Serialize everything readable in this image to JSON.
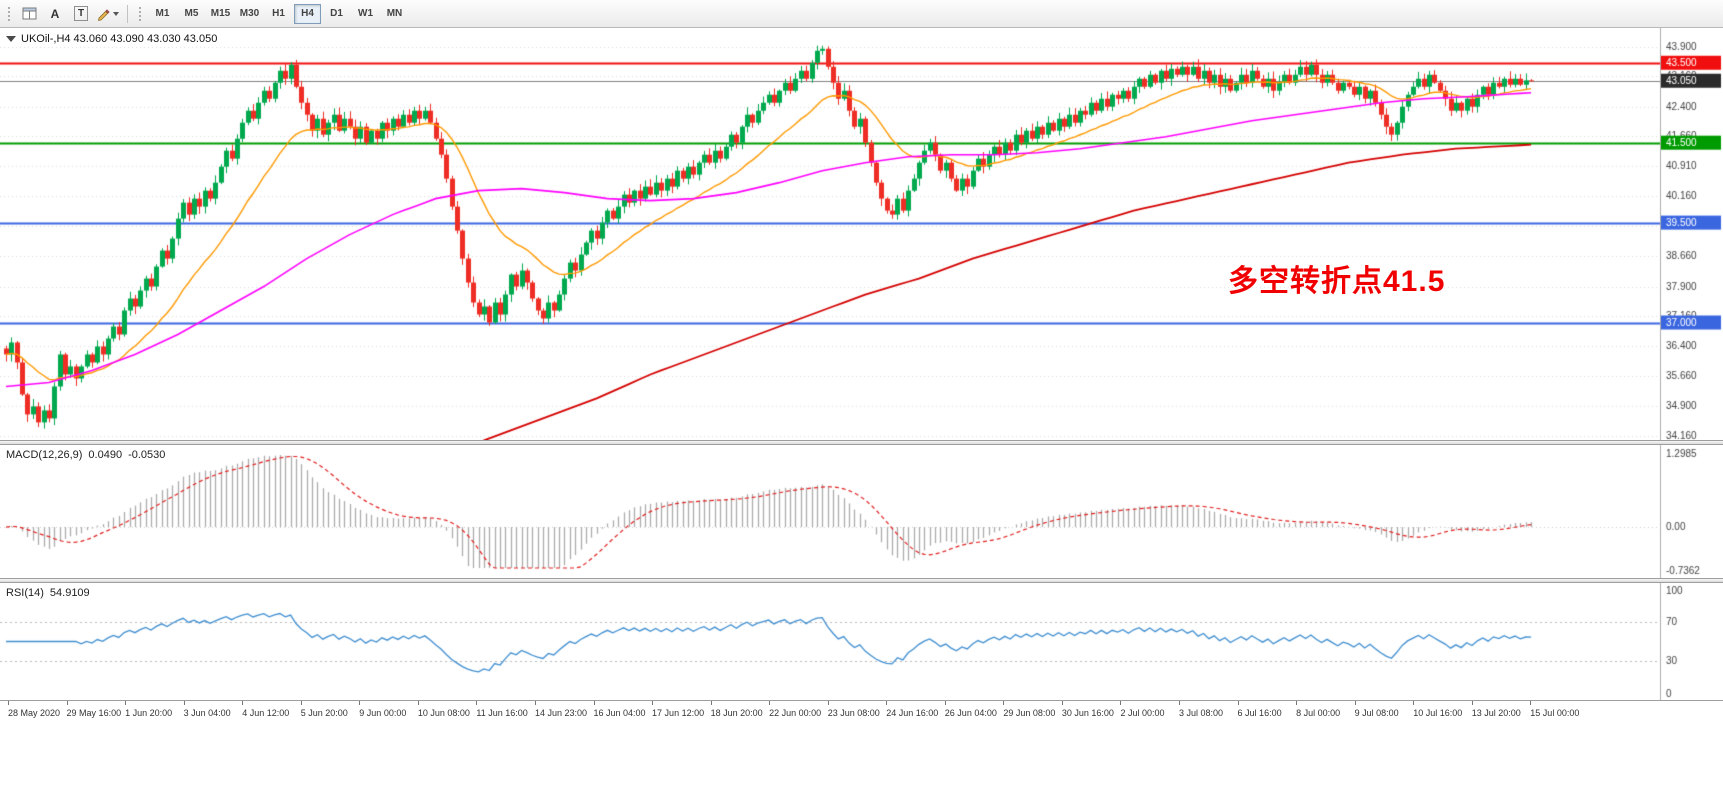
{
  "toolbar": {
    "buttons": {
      "text_tool": "A",
      "label_tool": "T"
    },
    "timeframes": [
      "M1",
      "M5",
      "M15",
      "M30",
      "H1",
      "H4",
      "D1",
      "W1",
      "MN"
    ],
    "active_timeframe": "H4"
  },
  "chart": {
    "symbol_line": "UKOil-,H4 43.060 43.090 43.030 43.050"
  },
  "chart_data": {
    "type": "candlestick",
    "symbol": "UKOil-",
    "timeframe": "H4",
    "bars": 285,
    "ohlc_current": {
      "open": 43.06,
      "high": 43.09,
      "low": 43.03,
      "close": 43.05
    },
    "price_axis": {
      "view_range": [
        34.06,
        44.37
      ],
      "ticks": [
        43.9,
        43.16,
        42.4,
        41.66,
        40.91,
        40.16,
        39.41,
        38.66,
        37.9,
        37.16,
        36.4,
        35.66,
        34.9,
        34.16
      ]
    },
    "levels": [
      {
        "price": 43.5,
        "color": "#f10e0e",
        "label": "43.500"
      },
      {
        "price": 41.5,
        "color": "#009b00",
        "label": "41.500"
      },
      {
        "price": 39.5,
        "color": "#3a66e0",
        "label": "39.500"
      },
      {
        "price": 37.0,
        "color": "#3a66e0",
        "label": "37.000"
      }
    ],
    "current_price": {
      "value": 43.05,
      "label": "43.050",
      "line_color": "#808080",
      "badge_color": "#2b2b2b"
    },
    "annotation": {
      "text": "多空转折点41.5",
      "color": "#f00000"
    },
    "colors": {
      "up": "#00a94e",
      "down": "#ee2e24",
      "ma_fast": "#ff9900",
      "ma_medium": "#ff00ff",
      "ma_slow": "#d40000",
      "macd_hist": "#ababab",
      "macd_signal": "#e02020",
      "rsi": "#3f8ed0",
      "grid": "#dadada"
    },
    "ma_fast_period": 21,
    "closes": [
      36.2,
      36.5,
      36.0,
      35.2,
      34.7,
      34.9,
      34.5,
      34.8,
      34.6,
      35.4,
      36.2,
      35.7,
      35.9,
      35.6,
      35.9,
      36.2,
      36.0,
      36.4,
      36.2,
      36.6,
      36.9,
      36.7,
      37.3,
      37.6,
      37.4,
      37.8,
      38.1,
      37.9,
      38.4,
      38.8,
      38.6,
      39.1,
      39.6,
      40.0,
      39.7,
      40.1,
      39.9,
      40.3,
      40.1,
      40.5,
      40.9,
      41.3,
      41.1,
      41.6,
      42.0,
      42.3,
      42.1,
      42.5,
      42.8,
      42.6,
      43.0,
      43.3,
      43.1,
      43.45,
      42.9,
      42.5,
      42.2,
      41.8,
      42.1,
      41.7,
      42.0,
      42.2,
      41.8,
      42.1,
      41.9,
      41.6,
      41.9,
      41.5,
      41.8,
      41.6,
      42.0,
      41.8,
      42.1,
      41.9,
      42.2,
      42.0,
      42.3,
      42.1,
      42.3,
      42.0,
      41.6,
      41.2,
      40.6,
      39.9,
      39.3,
      38.6,
      38.0,
      37.5,
      37.2,
      37.4,
      37.0,
      37.5,
      37.2,
      37.7,
      38.2,
      37.9,
      38.3,
      38.0,
      37.6,
      37.3,
      37.1,
      37.5,
      37.3,
      37.7,
      38.1,
      38.5,
      38.3,
      38.7,
      39.0,
      39.3,
      39.1,
      39.5,
      39.8,
      39.6,
      39.9,
      40.2,
      40.0,
      40.3,
      40.1,
      40.4,
      40.2,
      40.5,
      40.3,
      40.6,
      40.4,
      40.8,
      40.6,
      40.9,
      40.7,
      41.0,
      41.2,
      41.0,
      41.3,
      41.1,
      41.4,
      41.7,
      41.5,
      41.9,
      42.2,
      42.0,
      42.3,
      42.5,
      42.7,
      42.5,
      42.8,
      43.0,
      42.8,
      43.1,
      43.3,
      43.1,
      43.5,
      43.8,
      43.85,
      43.4,
      43.0,
      42.6,
      42.8,
      42.3,
      41.9,
      42.1,
      41.5,
      41.0,
      40.5,
      40.1,
      39.8,
      39.7,
      40.1,
      39.8,
      40.3,
      40.6,
      41.0,
      41.3,
      41.5,
      41.2,
      40.8,
      41.0,
      40.6,
      40.3,
      40.6,
      40.4,
      40.8,
      41.1,
      40.9,
      41.2,
      41.4,
      41.2,
      41.5,
      41.3,
      41.7,
      41.5,
      41.8,
      41.6,
      41.9,
      41.7,
      42.0,
      41.8,
      42.1,
      41.9,
      42.2,
      42.0,
      42.3,
      42.2,
      42.5,
      42.3,
      42.6,
      42.4,
      42.7,
      42.6,
      42.8,
      42.6,
      42.9,
      43.1,
      42.9,
      43.2,
      43.0,
      43.3,
      43.1,
      43.35,
      43.2,
      43.4,
      43.2,
      43.4,
      43.1,
      43.3,
      43.0,
      43.2,
      42.9,
      43.1,
      42.8,
      43.0,
      43.2,
      43.0,
      43.3,
      43.1,
      42.9,
      43.1,
      42.8,
      43.0,
      43.2,
      43.0,
      43.2,
      43.4,
      43.2,
      43.45,
      43.2,
      43.0,
      43.2,
      43.0,
      42.8,
      43.0,
      42.9,
      42.7,
      42.9,
      42.6,
      42.8,
      42.5,
      42.2,
      41.9,
      41.7,
      42.0,
      42.4,
      42.7,
      42.9,
      43.1,
      42.9,
      43.2,
      43.0,
      42.8,
      42.6,
      42.3,
      42.5,
      42.3,
      42.6,
      42.4,
      42.7,
      42.9,
      42.7,
      43.0,
      42.9,
      43.1,
      42.95,
      43.1,
      42.95,
      43.06,
      43.05
    ],
    "ma_medium_anchors": [
      [
        0,
        35.4
      ],
      [
        8,
        35.5
      ],
      [
        16,
        35.8
      ],
      [
        24,
        36.2
      ],
      [
        32,
        36.7
      ],
      [
        40,
        37.3
      ],
      [
        48,
        37.9
      ],
      [
        56,
        38.6
      ],
      [
        64,
        39.2
      ],
      [
        72,
        39.7
      ],
      [
        80,
        40.1
      ],
      [
        88,
        40.3
      ],
      [
        96,
        40.35
      ],
      [
        104,
        40.25
      ],
      [
        112,
        40.1
      ],
      [
        120,
        40.05
      ],
      [
        128,
        40.1
      ],
      [
        136,
        40.25
      ],
      [
        144,
        40.5
      ],
      [
        152,
        40.8
      ],
      [
        160,
        41.0
      ],
      [
        168,
        41.15
      ],
      [
        176,
        41.2
      ],
      [
        184,
        41.2
      ],
      [
        192,
        41.25
      ],
      [
        200,
        41.35
      ],
      [
        208,
        41.5
      ],
      [
        216,
        41.65
      ],
      [
        224,
        41.85
      ],
      [
        232,
        42.05
      ],
      [
        240,
        42.2
      ],
      [
        248,
        42.35
      ],
      [
        256,
        42.5
      ],
      [
        264,
        42.6
      ],
      [
        272,
        42.65
      ],
      [
        284,
        42.75
      ]
    ],
    "ma_slow_anchors": [
      [
        0,
        29.5
      ],
      [
        40,
        31.6
      ],
      [
        70,
        33.1
      ],
      [
        90,
        34.1
      ],
      [
        100,
        34.6
      ],
      [
        110,
        35.1
      ],
      [
        120,
        35.7
      ],
      [
        130,
        36.2
      ],
      [
        140,
        36.7
      ],
      [
        150,
        37.2
      ],
      [
        160,
        37.7
      ],
      [
        170,
        38.1
      ],
      [
        180,
        38.6
      ],
      [
        190,
        39.0
      ],
      [
        200,
        39.4
      ],
      [
        210,
        39.8
      ],
      [
        220,
        40.1
      ],
      [
        230,
        40.4
      ],
      [
        240,
        40.7
      ],
      [
        250,
        41.0
      ],
      [
        260,
        41.2
      ],
      [
        270,
        41.35
      ],
      [
        284,
        41.45
      ]
    ],
    "macd": {
      "label": "MACD(12,26,9)",
      "value_main": "0.0490",
      "value_signal": "-0.0530",
      "range": [
        -0.7362,
        1.2985
      ],
      "axis_labels": [
        "1.2985",
        "0.00",
        "-0.7362"
      ]
    },
    "rsi": {
      "label": "RSI(14)",
      "value": "54.9109",
      "period": 14,
      "levels": [
        70,
        30
      ],
      "scale": [
        0,
        100
      ],
      "axis_labels": [
        "100",
        "70",
        "30",
        "0"
      ]
    },
    "time_axis": [
      "28 May 2020",
      "29 May 16:00",
      "1 Jun 20:00",
      "3 Jun 04:00",
      "4 Jun 12:00",
      "5 Jun 20:00",
      "9 Jun 00:00",
      "10 Jun 08:00",
      "11 Jun 16:00",
      "14 Jun 23:00",
      "16 Jun 04:00",
      "17 Jun 12:00",
      "18 Jun 20:00",
      "22 Jun 00:00",
      "23 Jun 08:00",
      "24 Jun 16:00",
      "26 Jun 04:00",
      "29 Jun 08:00",
      "30 Jun 16:00",
      "2 Jul 00:00",
      "3 Jul 08:00",
      "6 Jul 16:00",
      "8 Jul 00:00",
      "9 Jul 08:00",
      "10 Jul 16:00",
      "13 Jul 20:00",
      "15 Jul 00:00"
    ]
  }
}
